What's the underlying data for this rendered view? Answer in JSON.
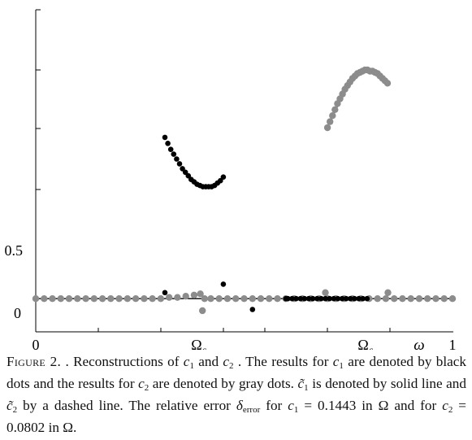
{
  "chart_data": {
    "type": "scatter",
    "x_ticks": [
      {
        "value": 0,
        "label": "0"
      },
      {
        "value": 1,
        "label": "1"
      }
    ],
    "y_ticks": [
      {
        "value": 0,
        "label": "0"
      },
      {
        "value": 0.5,
        "label": "0.5"
      }
    ],
    "x_symbol_label": "ω",
    "omega_labels": [
      {
        "value": 0.4,
        "base": "Ω",
        "sub_base": "c",
        "sub_index": "1"
      },
      {
        "value": 0.8,
        "base": "Ω",
        "sub_base": "c",
        "sub_index": "2"
      }
    ],
    "xlim": [
      0,
      1
    ],
    "ylim": [
      -0.17,
      2.45
    ],
    "series": [
      {
        "role": "c1 reconstruction",
        "marker": "black-dot",
        "color": "#000000",
        "x": [
          0.31,
          0.317,
          0.324,
          0.331,
          0.338,
          0.345,
          0.352,
          0.359,
          0.366,
          0.373,
          0.38,
          0.387,
          0.394,
          0.401,
          0.408,
          0.415,
          0.422,
          0.429,
          0.436,
          0.443,
          0.45
        ],
        "y": [
          1.44,
          1.39,
          1.34,
          1.3,
          1.26,
          1.22,
          1.18,
          1.15,
          1.12,
          1.09,
          1.07,
          1.05,
          1.04,
          1.03,
          1.03,
          1.03,
          1.03,
          1.04,
          1.06,
          1.08,
          1.11
        ]
      },
      {
        "role": "c1 reconstruction",
        "marker": "black-dot",
        "color": "#000000",
        "x": [
          0.31,
          0.45,
          0.52,
          0.6,
          0.605,
          0.615,
          0.625,
          0.635,
          0.645,
          0.655,
          0.665,
          0.675,
          0.685,
          0.695,
          0.705,
          0.715,
          0.725,
          0.735,
          0.745,
          0.755,
          0.765,
          0.775,
          0.785,
          0.795
        ],
        "y": [
          0.15,
          0.22,
          0.01,
          0.1,
          0.1,
          0.1,
          0.1,
          0.1,
          0.1,
          0.1,
          0.1,
          0.1,
          0.1,
          0.1,
          0.1,
          0.1,
          0.1,
          0.1,
          0.1,
          0.1,
          0.1,
          0.1,
          0.1,
          0.1
        ]
      },
      {
        "role": "c2 reconstruction",
        "marker": "gray-dot",
        "color": "#8c8c8c",
        "x": [
          0.7,
          0.706,
          0.712,
          0.718,
          0.724,
          0.73,
          0.736,
          0.742,
          0.748,
          0.754,
          0.76,
          0.766,
          0.772,
          0.778,
          0.784,
          0.79,
          0.796,
          0.802,
          0.808,
          0.814,
          0.82,
          0.826,
          0.832,
          0.838,
          0.844
        ],
        "y": [
          1.52,
          1.57,
          1.62,
          1.67,
          1.72,
          1.76,
          1.8,
          1.84,
          1.87,
          1.9,
          1.93,
          1.95,
          1.97,
          1.98,
          1.99,
          2.0,
          2.0,
          1.99,
          1.99,
          1.98,
          1.97,
          1.95,
          1.93,
          1.91,
          1.89
        ]
      },
      {
        "role": "c2 reconstruction",
        "marker": "gray-dot",
        "color": "#8c8c8c",
        "x": [
          0.0,
          0.02,
          0.04,
          0.06,
          0.08,
          0.1,
          0.12,
          0.14,
          0.16,
          0.18,
          0.2,
          0.22,
          0.24,
          0.26,
          0.28,
          0.3,
          0.32,
          0.34,
          0.36,
          0.38,
          0.395,
          0.4,
          0.405,
          0.42,
          0.44,
          0.46,
          0.48,
          0.5,
          0.52,
          0.54,
          0.56,
          0.58,
          0.6,
          0.62,
          0.64,
          0.66,
          0.68,
          0.7,
          0.72,
          0.74,
          0.76,
          0.78,
          0.8,
          0.82,
          0.84,
          0.86,
          0.88,
          0.9,
          0.92,
          0.94,
          0.96,
          0.98,
          1.0
        ],
        "y": [
          0.1,
          0.1,
          0.1,
          0.1,
          0.1,
          0.1,
          0.1,
          0.1,
          0.1,
          0.1,
          0.1,
          0.1,
          0.1,
          0.1,
          0.1,
          0.1,
          0.11,
          0.11,
          0.12,
          0.13,
          0.14,
          0.0,
          0.1,
          0.1,
          0.1,
          0.1,
          0.1,
          0.1,
          0.1,
          0.1,
          0.1,
          0.1,
          0.1,
          0.1,
          0.1,
          0.1,
          0.1,
          0.1,
          0.1,
          0.1,
          0.1,
          0.1,
          0.1,
          0.1,
          0.1,
          0.1,
          0.1,
          0.1,
          0.1,
          0.1,
          0.1,
          0.1,
          0.1
        ]
      },
      {
        "role": "c2 reconstruction",
        "marker": "gray-dot",
        "color": "#8c8c8c",
        "x": [
          0.695,
          0.845
        ],
        "y": [
          0.15,
          0.15
        ]
      }
    ],
    "lines": [
      {
        "role": "c1 tilde (solid)",
        "style": "solid",
        "color": "#000000",
        "x": [
          0.0,
          0.2,
          0.3,
          0.4,
          0.5,
          0.6,
          0.8,
          1.0
        ],
        "y": [
          0.1,
          0.1,
          0.1,
          0.1,
          0.1,
          0.1,
          0.1,
          0.1
        ]
      },
      {
        "role": "c2 tilde (dashed)",
        "style": "dashed",
        "color": "#555555",
        "x": [
          0.7,
          0.72,
          0.74,
          0.76,
          0.78,
          0.8,
          0.82,
          0.84
        ],
        "y": [
          1.52,
          1.67,
          1.8,
          1.9,
          1.97,
          2.0,
          1.98,
          1.9
        ]
      }
    ]
  },
  "caption": {
    "figure_label": "Figure 2.",
    "text_1": " . Reconstructions of ",
    "c1": "c",
    "c1_sub": "1",
    "and": " and ",
    "c2": "c",
    "c2_sub": "2",
    "text_2": " . The results for ",
    "text_3": " are denoted by black dots and the results for ",
    "text_4": " are denoted by gray dots. ",
    "tilde_c1": "c̃",
    "tilde_c1_sub": "1",
    "text_5": " is denoted by solid line and ",
    "tilde_c2": "c̃",
    "tilde_c2_sub": "2",
    "text_6": " by a dashed line. The relative error ",
    "delta": "δ",
    "delta_sub": "error",
    "text_7": " for ",
    "eq1": " = 0.1443 in Ω and for ",
    "eq2": " = 0.0802 in Ω."
  }
}
